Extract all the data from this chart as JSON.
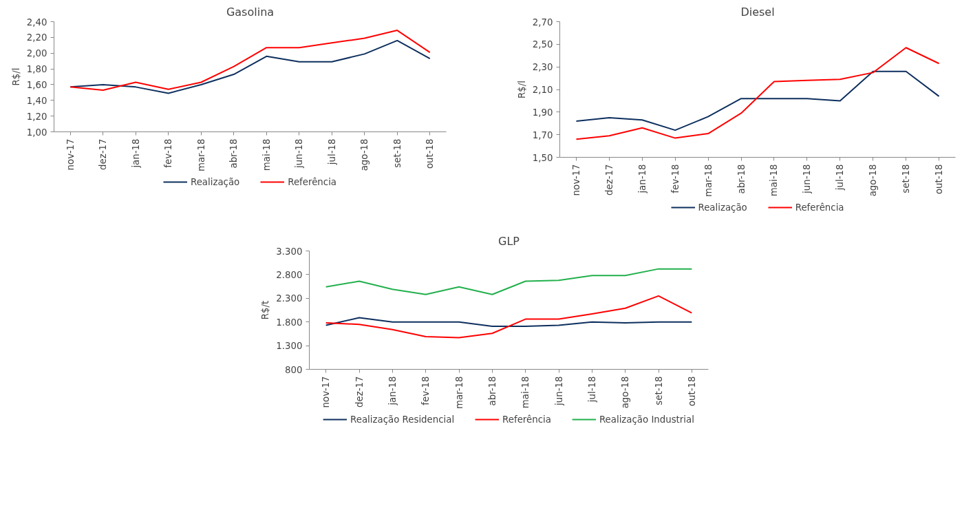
{
  "chart_data": [
    {
      "type": "line",
      "title": "Gasolina",
      "ylabel": "R$/l",
      "categories": [
        "nov-17",
        "dez-17",
        "jan-18",
        "fev-18",
        "mar-18",
        "abr-18",
        "mai-18",
        "jun-18",
        "jul-18",
        "ago-18",
        "set-18",
        "out-18"
      ],
      "series": [
        {
          "name": "Realização",
          "color": "#0d2f5e",
          "values": [
            1.57,
            1.6,
            1.57,
            1.49,
            1.6,
            1.73,
            1.96,
            1.89,
            1.89,
            1.99,
            2.16,
            1.93
          ]
        },
        {
          "name": "Referência",
          "color": "#ff0000",
          "values": [
            1.57,
            1.53,
            1.63,
            1.54,
            1.63,
            1.83,
            2.07,
            2.07,
            2.13,
            2.19,
            2.29,
            2.01
          ]
        }
      ],
      "ylim": [
        1.0,
        2.4
      ],
      "yticks": [
        {
          "value": 1.0,
          "label": "1,00"
        },
        {
          "value": 1.2,
          "label": "1,20"
        },
        {
          "value": 1.4,
          "label": "1,40"
        },
        {
          "value": 1.6,
          "label": "1,60"
        },
        {
          "value": 1.8,
          "label": "1,80"
        },
        {
          "value": 2.0,
          "label": "2,00"
        },
        {
          "value": 2.2,
          "label": "2,20"
        },
        {
          "value": 2.4,
          "label": "2,40"
        }
      ],
      "grid": false,
      "legend": "bottom",
      "marker": "none",
      "line_style": "solid"
    },
    {
      "type": "line",
      "title": "Diesel",
      "ylabel": "R$/l",
      "categories": [
        "nov-17",
        "dez-17",
        "jan-18",
        "fev-18",
        "mar-18",
        "abr-18",
        "mai-18",
        "jun-18",
        "jul-18",
        "ago-18",
        "set-18",
        "out-18"
      ],
      "series": [
        {
          "name": "Realização",
          "color": "#0d2f5e",
          "values": [
            1.82,
            1.85,
            1.83,
            1.74,
            1.86,
            2.02,
            2.02,
            2.02,
            2.0,
            2.26,
            2.26,
            2.04
          ]
        },
        {
          "name": "Referência",
          "color": "#ff0000",
          "values": [
            1.66,
            1.69,
            1.76,
            1.67,
            1.71,
            1.89,
            2.17,
            2.18,
            2.19,
            2.25,
            2.47,
            2.33
          ]
        }
      ],
      "ylim": [
        1.5,
        2.7
      ],
      "yticks": [
        {
          "value": 1.5,
          "label": "1,50"
        },
        {
          "value": 1.7,
          "label": "1,70"
        },
        {
          "value": 1.9,
          "label": "1,90"
        },
        {
          "value": 2.1,
          "label": "2,10"
        },
        {
          "value": 2.3,
          "label": "2,30"
        },
        {
          "value": 2.5,
          "label": "2,50"
        },
        {
          "value": 2.7,
          "label": "2,70"
        }
      ],
      "grid": false,
      "legend": "bottom",
      "marker": "none",
      "line_style": "solid"
    },
    {
      "type": "line",
      "title": "GLP",
      "ylabel": "R$/t",
      "categories": [
        "nov-17",
        "dez-17",
        "jan-18",
        "fev-18",
        "mar-18",
        "abr-18",
        "mai-18",
        "jun-18",
        "jul-18",
        "ago-18",
        "set-18",
        "out-18"
      ],
      "series": [
        {
          "name": "Realização Residencial",
          "color": "#0d2f5e",
          "values": [
            1730,
            1890,
            1800,
            1800,
            1800,
            1710,
            1710,
            1730,
            1800,
            1780,
            1800,
            1800
          ]
        },
        {
          "name": "Referência",
          "color": "#ff0000",
          "values": [
            1780,
            1750,
            1640,
            1490,
            1470,
            1560,
            1860,
            1860,
            1970,
            2090,
            2350,
            1990
          ]
        },
        {
          "name": "Realização Industrial",
          "color": "#22b04c",
          "values": [
            2540,
            2660,
            2490,
            2380,
            2540,
            2380,
            2660,
            2680,
            2780,
            2780,
            2920,
            2920
          ]
        }
      ],
      "ylim": [
        800,
        3300
      ],
      "yticks": [
        {
          "value": 800,
          "label": "800"
        },
        {
          "value": 1300,
          "label": "1.300"
        },
        {
          "value": 1800,
          "label": "1.800"
        },
        {
          "value": 2300,
          "label": "2.300"
        },
        {
          "value": 2800,
          "label": "2.800"
        },
        {
          "value": 3300,
          "label": "3.300"
        }
      ],
      "grid": false,
      "legend": "bottom",
      "marker": "none",
      "line_style": "solid"
    }
  ]
}
